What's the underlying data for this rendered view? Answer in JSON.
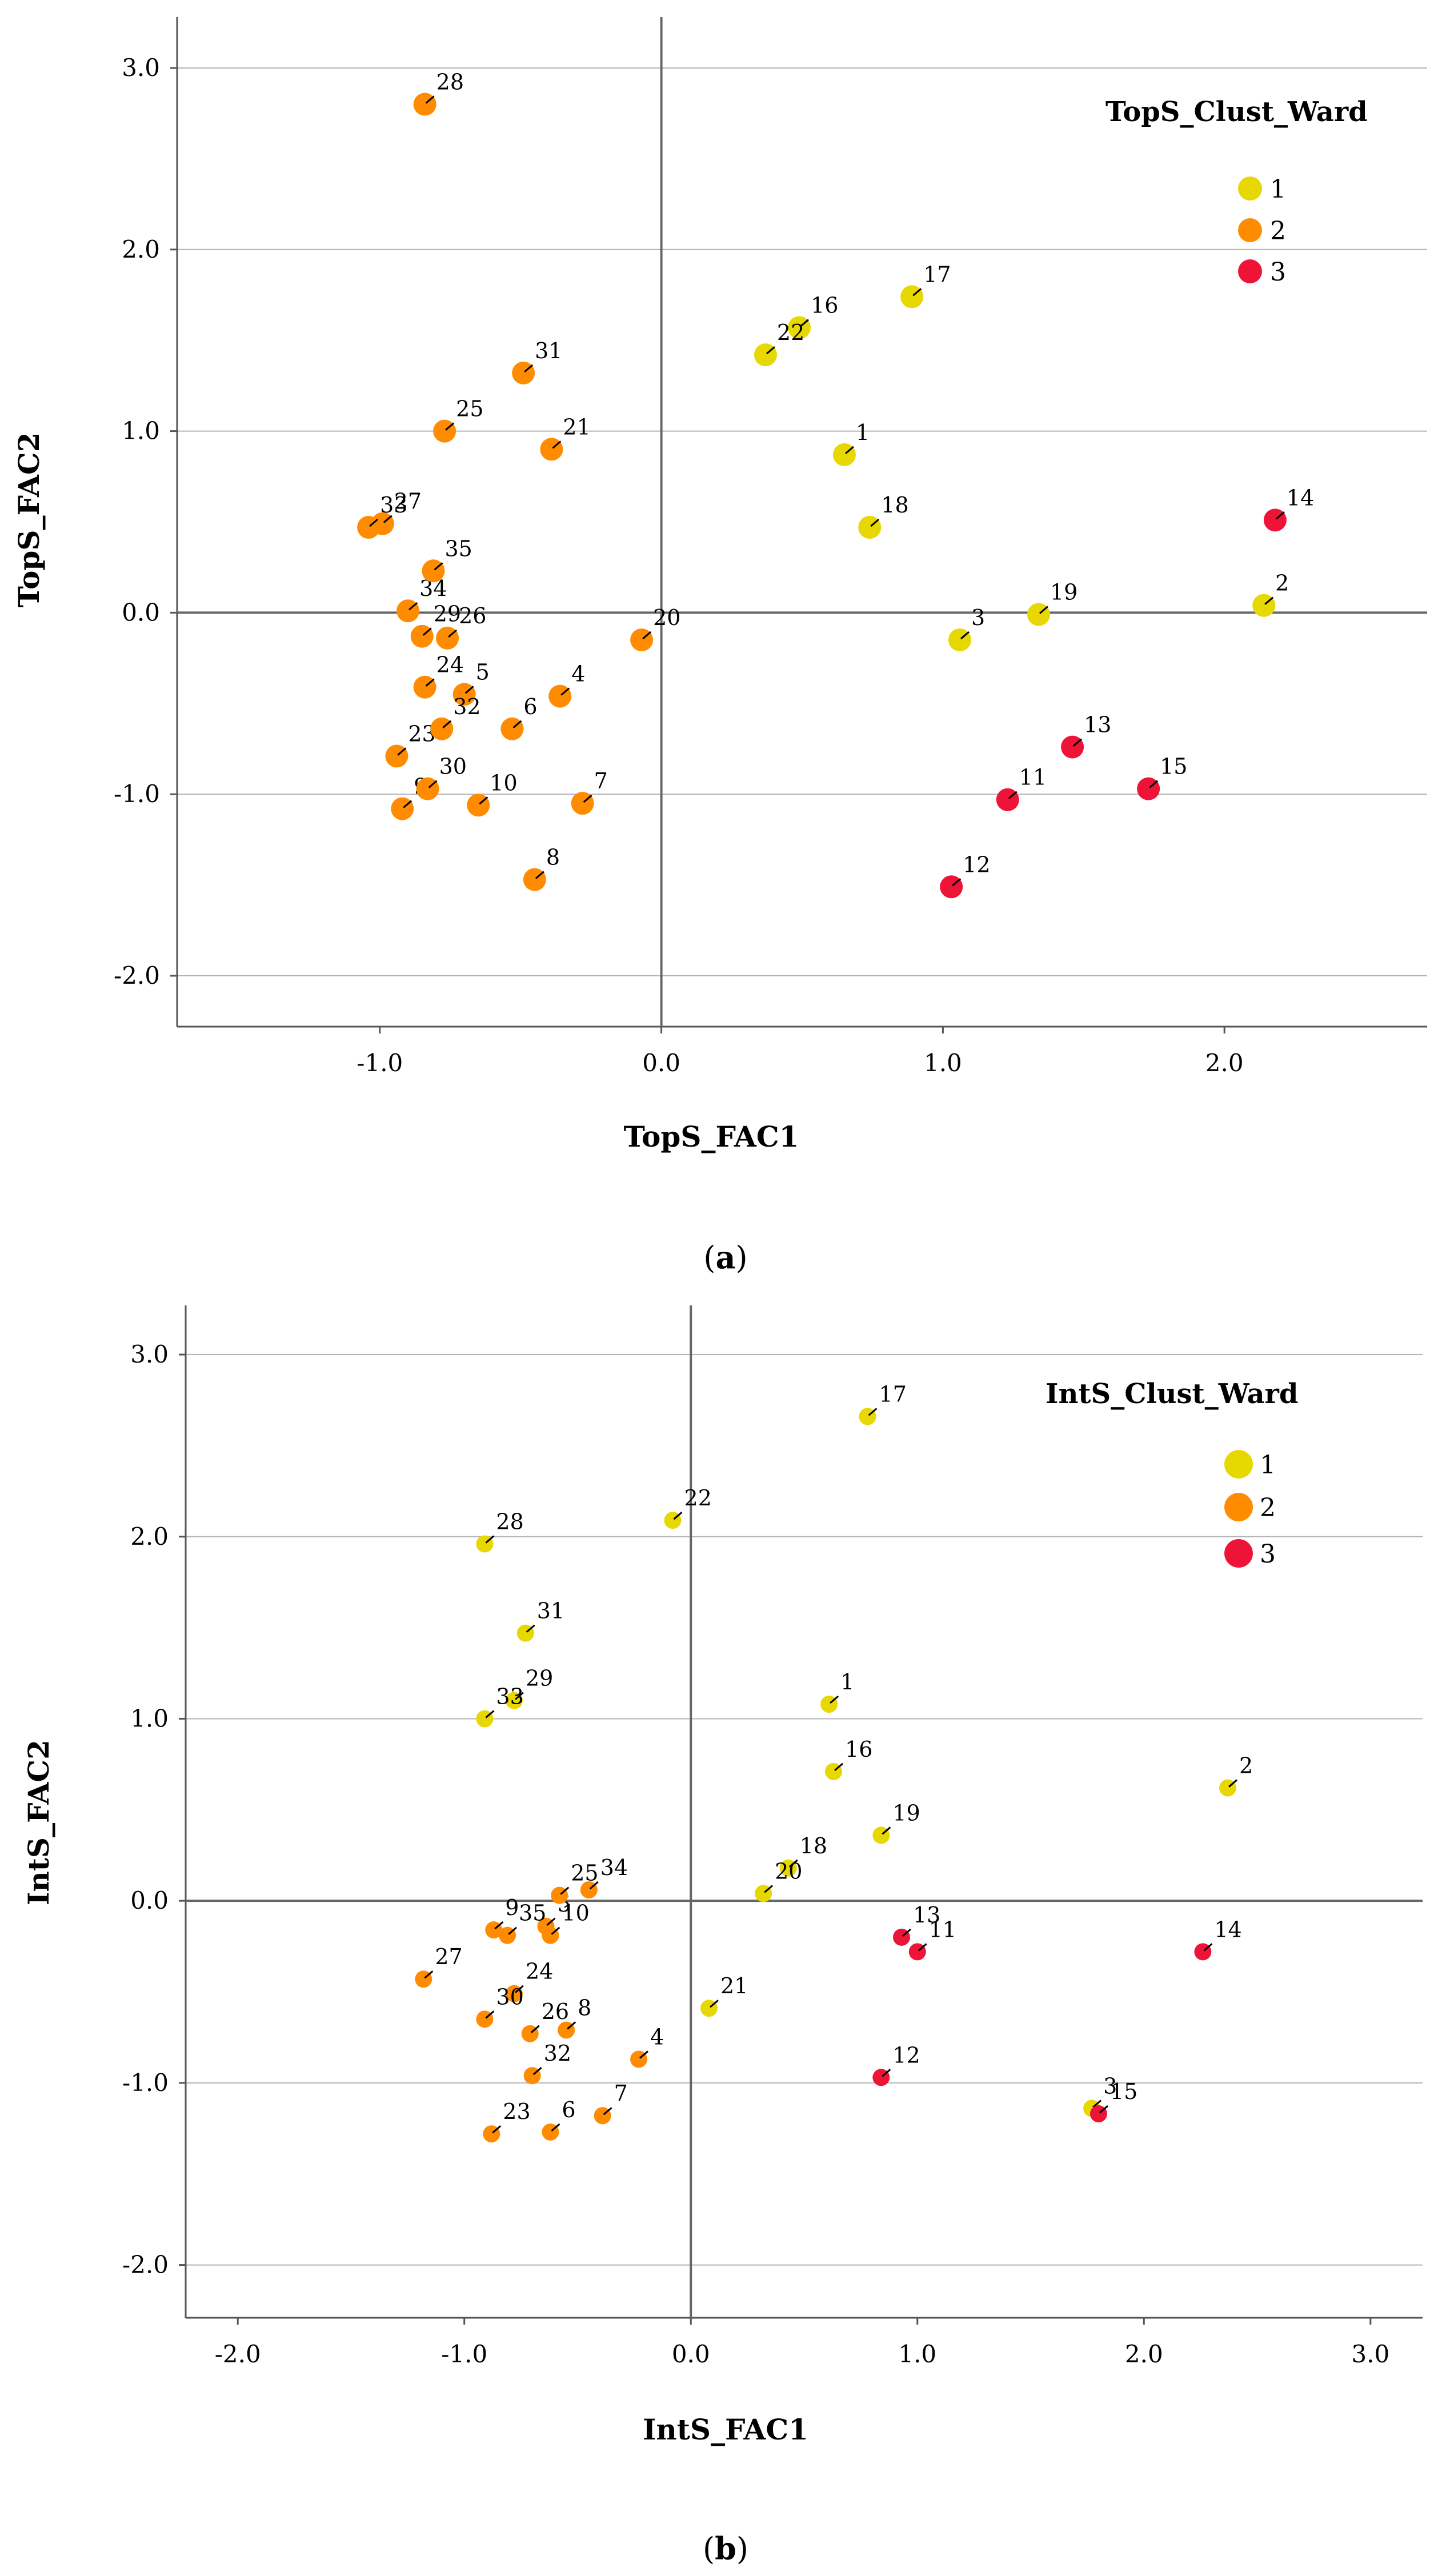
{
  "colors": {
    "1": "#e6d800",
    "2": "#ff8c00",
    "3": "#ee1438",
    "grid": "#b4b4b4",
    "axis": "#555555",
    "ref": "#666666"
  },
  "chart_data": [
    {
      "type": "scatter",
      "panel_label": "(a)",
      "xlabel": "TopS_FAC1",
      "ylabel": "TopS_FAC2",
      "xlim": [
        -1.72,
        2.72
      ],
      "ylim": [
        -2.28,
        3.28
      ],
      "xticks": [
        -1.0,
        0.0,
        1.0,
        2.0
      ],
      "xtick_labels": [
        "-1.0",
        "0.0",
        "1.0",
        "2.0"
      ],
      "yticks": [
        -2.0,
        -1.0,
        0.0,
        1.0,
        2.0,
        3.0
      ],
      "ytick_labels": [
        "-2.0",
        "-1.0",
        "0.0",
        "1.0",
        "2.0",
        "3.0"
      ],
      "grid": "horizontal",
      "reference_lines": {
        "x": 0,
        "y": 0
      },
      "legend": {
        "title": "TopS_Clust_Ward",
        "position": "top-right",
        "entries": [
          {
            "cluster": "1",
            "label": "1"
          },
          {
            "cluster": "2",
            "label": "2"
          },
          {
            "cluster": "3",
            "label": "3"
          }
        ]
      },
      "points": [
        {
          "id": "1",
          "x": 0.65,
          "y": 0.87,
          "cluster": "1"
        },
        {
          "id": "2",
          "x": 2.14,
          "y": 0.04,
          "cluster": "1"
        },
        {
          "id": "3",
          "x": 1.06,
          "y": -0.15,
          "cluster": "1"
        },
        {
          "id": "4",
          "x": -0.36,
          "y": -0.46,
          "cluster": "2"
        },
        {
          "id": "5",
          "x": -0.7,
          "y": -0.45,
          "cluster": "2"
        },
        {
          "id": "6",
          "x": -0.53,
          "y": -0.64,
          "cluster": "2"
        },
        {
          "id": "7",
          "x": -0.28,
          "y": -1.05,
          "cluster": "2"
        },
        {
          "id": "8",
          "x": -0.45,
          "y": -1.47,
          "cluster": "2"
        },
        {
          "id": "9",
          "x": -0.92,
          "y": -1.08,
          "cluster": "2"
        },
        {
          "id": "10",
          "x": -0.65,
          "y": -1.06,
          "cluster": "2"
        },
        {
          "id": "11",
          "x": 1.23,
          "y": -1.03,
          "cluster": "3"
        },
        {
          "id": "12",
          "x": 1.03,
          "y": -1.51,
          "cluster": "3"
        },
        {
          "id": "13",
          "x": 1.46,
          "y": -0.74,
          "cluster": "3"
        },
        {
          "id": "14",
          "x": 2.18,
          "y": 0.51,
          "cluster": "3"
        },
        {
          "id": "15",
          "x": 1.73,
          "y": -0.97,
          "cluster": "3"
        },
        {
          "id": "16",
          "x": 0.49,
          "y": 1.57,
          "cluster": "1"
        },
        {
          "id": "17",
          "x": 0.89,
          "y": 1.74,
          "cluster": "1"
        },
        {
          "id": "18",
          "x": 0.74,
          "y": 0.47,
          "cluster": "1"
        },
        {
          "id": "19",
          "x": 1.34,
          "y": -0.01,
          "cluster": "1"
        },
        {
          "id": "20",
          "x": -0.07,
          "y": -0.15,
          "cluster": "2"
        },
        {
          "id": "21",
          "x": -0.39,
          "y": 0.9,
          "cluster": "2"
        },
        {
          "id": "22",
          "x": 0.37,
          "y": 1.42,
          "cluster": "1"
        },
        {
          "id": "23",
          "x": -0.94,
          "y": -0.79,
          "cluster": "2"
        },
        {
          "id": "24",
          "x": -0.84,
          "y": -0.41,
          "cluster": "2"
        },
        {
          "id": "25",
          "x": -0.77,
          "y": 1.0,
          "cluster": "2"
        },
        {
          "id": "26",
          "x": -0.76,
          "y": -0.14,
          "cluster": "2"
        },
        {
          "id": "27",
          "x": -0.99,
          "y": 0.49,
          "cluster": "2"
        },
        {
          "id": "28",
          "x": -0.84,
          "y": 2.8,
          "cluster": "2"
        },
        {
          "id": "29",
          "x": -0.85,
          "y": -0.13,
          "cluster": "2"
        },
        {
          "id": "30",
          "x": -0.83,
          "y": -0.97,
          "cluster": "2"
        },
        {
          "id": "31",
          "x": -0.49,
          "y": 1.32,
          "cluster": "2"
        },
        {
          "id": "32",
          "x": -0.78,
          "y": -0.64,
          "cluster": "2"
        },
        {
          "id": "33",
          "x": -1.04,
          "y": 0.47,
          "cluster": "2"
        },
        {
          "id": "34",
          "x": -0.9,
          "y": 0.01,
          "cluster": "2"
        },
        {
          "id": "35",
          "x": -0.81,
          "y": 0.23,
          "cluster": "2"
        }
      ]
    },
    {
      "type": "scatter",
      "panel_label": "(b)",
      "xlabel": "IntS_FAC1",
      "ylabel": "IntS_FAC2",
      "xlim": [
        -2.23,
        3.23
      ],
      "ylim": [
        -2.29,
        3.27
      ],
      "xticks": [
        -2.0,
        -1.0,
        0.0,
        1.0,
        2.0,
        3.0
      ],
      "xtick_labels": [
        "-2.0",
        "-1.0",
        "0.0",
        "1.0",
        "2.0",
        "3.0"
      ],
      "yticks": [
        -2.0,
        -1.0,
        0.0,
        1.0,
        2.0,
        3.0
      ],
      "ytick_labels": [
        "-2.0",
        "-1.0",
        "0.0",
        "1.0",
        "2.0",
        "3.0"
      ],
      "grid": "horizontal",
      "reference_lines": {
        "x": 0,
        "y": 0
      },
      "legend": {
        "title": "IntS_Clust_Ward",
        "position": "top-right",
        "entries": [
          {
            "cluster": "1",
            "label": "1"
          },
          {
            "cluster": "2",
            "label": "2"
          },
          {
            "cluster": "3",
            "label": "3"
          }
        ]
      },
      "points": [
        {
          "id": "1",
          "x": 0.61,
          "y": 1.08,
          "cluster": "1"
        },
        {
          "id": "2",
          "x": 2.37,
          "y": 0.62,
          "cluster": "1"
        },
        {
          "id": "3",
          "x": 1.77,
          "y": -1.14,
          "cluster": "1"
        },
        {
          "id": "4",
          "x": -0.23,
          "y": -0.87,
          "cluster": "2"
        },
        {
          "id": "5",
          "x": -0.64,
          "y": -0.14,
          "cluster": "2"
        },
        {
          "id": "6",
          "x": -0.62,
          "y": -1.27,
          "cluster": "2"
        },
        {
          "id": "7",
          "x": -0.39,
          "y": -1.18,
          "cluster": "2"
        },
        {
          "id": "8",
          "x": -0.55,
          "y": -0.71,
          "cluster": "2"
        },
        {
          "id": "9",
          "x": -0.87,
          "y": -0.16,
          "cluster": "2"
        },
        {
          "id": "10",
          "x": -0.62,
          "y": -0.19,
          "cluster": "2"
        },
        {
          "id": "11",
          "x": 1.0,
          "y": -0.28,
          "cluster": "3"
        },
        {
          "id": "12",
          "x": 0.84,
          "y": -0.97,
          "cluster": "3"
        },
        {
          "id": "13",
          "x": 0.93,
          "y": -0.2,
          "cluster": "3"
        },
        {
          "id": "14",
          "x": 2.26,
          "y": -0.28,
          "cluster": "3"
        },
        {
          "id": "15",
          "x": 1.8,
          "y": -1.17,
          "cluster": "3"
        },
        {
          "id": "16",
          "x": 0.63,
          "y": 0.71,
          "cluster": "1"
        },
        {
          "id": "17",
          "x": 0.78,
          "y": 2.66,
          "cluster": "1"
        },
        {
          "id": "18",
          "x": 0.43,
          "y": 0.18,
          "cluster": "1"
        },
        {
          "id": "19",
          "x": 0.84,
          "y": 0.36,
          "cluster": "1"
        },
        {
          "id": "20",
          "x": 0.32,
          "y": 0.04,
          "cluster": "1"
        },
        {
          "id": "21",
          "x": 0.08,
          "y": -0.59,
          "cluster": "1"
        },
        {
          "id": "22",
          "x": -0.08,
          "y": 2.09,
          "cluster": "1"
        },
        {
          "id": "23",
          "x": -0.88,
          "y": -1.28,
          "cluster": "2"
        },
        {
          "id": "24",
          "x": -0.78,
          "y": -0.51,
          "cluster": "2"
        },
        {
          "id": "25",
          "x": -0.58,
          "y": 0.03,
          "cluster": "2"
        },
        {
          "id": "26",
          "x": -0.71,
          "y": -0.73,
          "cluster": "2"
        },
        {
          "id": "27",
          "x": -1.18,
          "y": -0.43,
          "cluster": "2"
        },
        {
          "id": "28",
          "x": -0.91,
          "y": 1.96,
          "cluster": "1"
        },
        {
          "id": "29",
          "x": -0.78,
          "y": 1.1,
          "cluster": "1"
        },
        {
          "id": "30",
          "x": -0.91,
          "y": -0.65,
          "cluster": "2"
        },
        {
          "id": "31",
          "x": -0.73,
          "y": 1.47,
          "cluster": "1"
        },
        {
          "id": "32",
          "x": -0.7,
          "y": -0.96,
          "cluster": "2"
        },
        {
          "id": "33",
          "x": -0.91,
          "y": 1.0,
          "cluster": "1"
        },
        {
          "id": "34",
          "x": -0.45,
          "y": 0.06,
          "cluster": "2"
        },
        {
          "id": "35",
          "x": -0.81,
          "y": -0.19,
          "cluster": "2"
        }
      ]
    }
  ]
}
